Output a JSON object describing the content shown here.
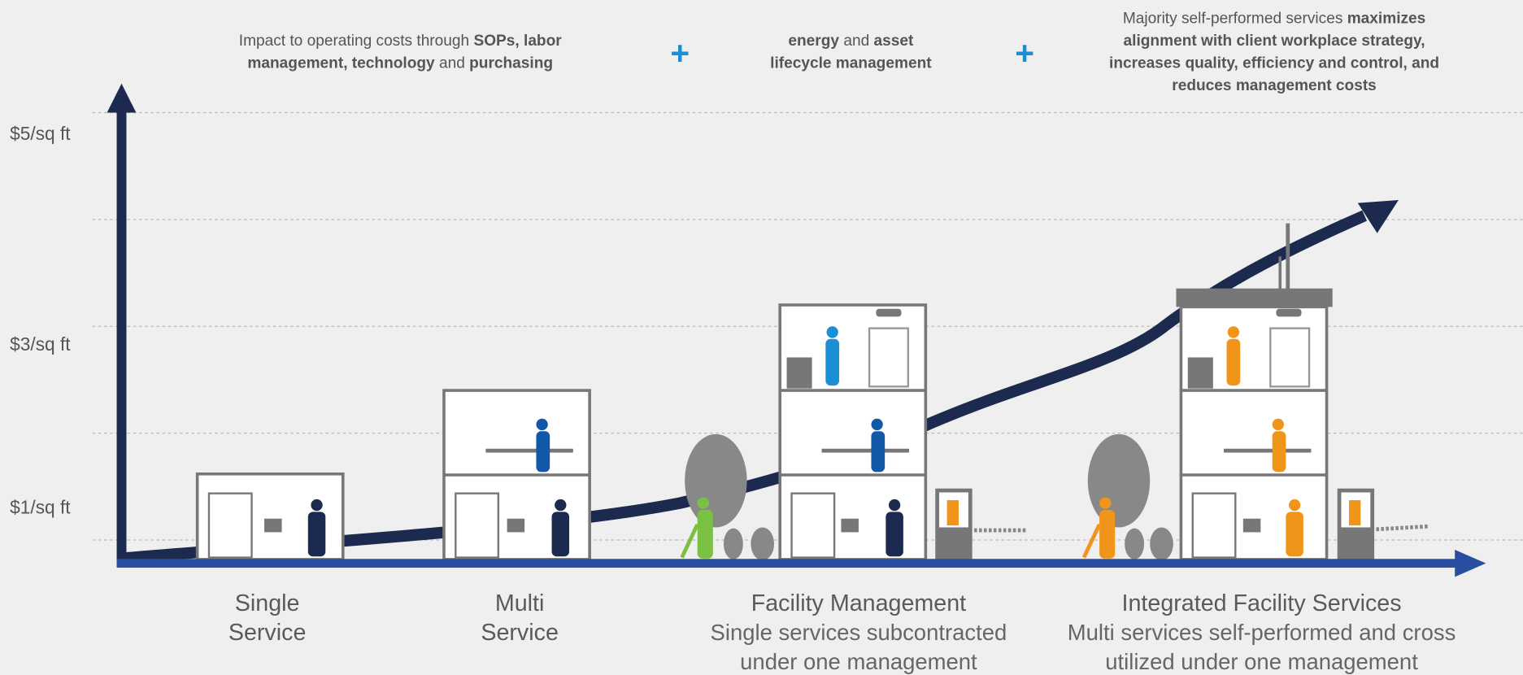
{
  "headers": [
    {
      "lines": [
        [
          {
            "text": "Impact to operating costs through ",
            "bold": false
          },
          {
            "text": "SOPs, labor",
            "bold": true
          }
        ],
        [
          {
            "text": "management, technology",
            "bold": true
          },
          {
            "text": " and ",
            "bold": false
          },
          {
            "text": "purchasing",
            "bold": true
          }
        ]
      ]
    },
    {
      "lines": [
        [
          {
            "text": "energy",
            "bold": true
          },
          {
            "text": " and ",
            "bold": false
          },
          {
            "text": "asset",
            "bold": true
          }
        ],
        [
          {
            "text": "lifecycle management",
            "bold": true
          }
        ]
      ]
    },
    {
      "lines": [
        [
          {
            "text": "Majority self-performed services ",
            "bold": false
          },
          {
            "text": "maximizes",
            "bold": true
          }
        ],
        [
          {
            "text": "alignment with client workplace strategy,",
            "bold": true
          }
        ],
        [
          {
            "text": "increases quality, efficiency and control, and",
            "bold": true
          }
        ],
        [
          {
            "text": "reduces management costs",
            "bold": true
          }
        ]
      ]
    }
  ],
  "plus_signs": [
    "+",
    "+"
  ],
  "y_axis_labels": [
    "$5/sq ft",
    "$3/sq ft",
    "$1/sq ft"
  ],
  "stages": [
    {
      "title": [
        "Single",
        "Service"
      ],
      "subtitle": []
    },
    {
      "title": [
        "Multi",
        "Service"
      ],
      "subtitle": []
    },
    {
      "title": [
        "Facility Management"
      ],
      "subtitle": [
        "Single services subcontracted",
        "under one management"
      ]
    },
    {
      "title": [
        "Integrated Facility Services"
      ],
      "subtitle": [
        "Multi services self-performed and cross",
        "utilized under one management"
      ]
    }
  ]
}
